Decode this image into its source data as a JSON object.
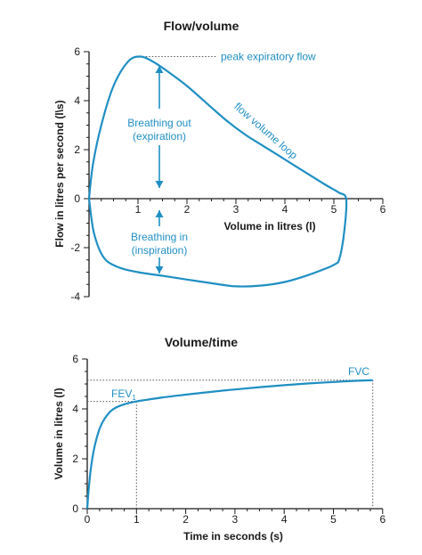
{
  "colors": {
    "accent": "#1f8fc3",
    "axis": "#1a1a1a",
    "dotted": "#555555"
  },
  "chart_data": [
    {
      "type": "line",
      "title": "Flow/volume",
      "xlabel": "Volume in litres (l)",
      "ylabel": "Flow in litres per second (l\\s)",
      "xlim": [
        0,
        6
      ],
      "ylim": [
        -4,
        6
      ],
      "xticks": [
        "1",
        "2",
        "3",
        "4",
        "5",
        "6"
      ],
      "yticks": [
        "-4",
        "-2",
        "0",
        "2",
        "4",
        "6"
      ],
      "series": [
        {
          "name": "flow volume loop",
          "x": [
            0.0,
            0.08,
            0.25,
            0.5,
            0.8,
            1.05,
            1.3,
            1.6,
            2.0,
            2.4,
            2.8,
            3.2,
            3.6,
            4.0,
            4.4,
            4.8,
            5.1,
            5.25,
            5.22,
            5.12,
            5.0,
            4.5,
            4.0,
            3.5,
            3.0,
            2.5,
            2.0,
            1.5,
            1.0,
            0.6,
            0.3,
            0.1,
            0.0
          ],
          "y": [
            0.0,
            1.4,
            3.0,
            4.6,
            5.6,
            5.8,
            5.6,
            5.2,
            4.6,
            3.9,
            3.2,
            2.6,
            2.1,
            1.6,
            1.1,
            0.6,
            0.25,
            0.0,
            -1.2,
            -2.4,
            -2.7,
            -3.1,
            -3.4,
            -3.55,
            -3.58,
            -3.45,
            -3.3,
            -3.15,
            -3.0,
            -2.8,
            -2.4,
            -1.4,
            0.0
          ]
        }
      ],
      "annotations": {
        "peak_label": "peak expiratory flow",
        "peak_value": [
          1.05,
          5.8
        ],
        "expiration_line1": "Breathing out",
        "expiration_line2": "(expiration)",
        "inspiration_line1": "Breathing in",
        "inspiration_line2": "(inspiration)",
        "loop_label": "flow volume loop"
      },
      "grid": false
    },
    {
      "type": "line",
      "title": "Volume/time",
      "xlabel": "Time in seconds (s)",
      "ylabel": "Volume in litres (l)",
      "xlim": [
        0,
        6
      ],
      "ylim": [
        0,
        6
      ],
      "xticks": [
        "0",
        "1",
        "2",
        "3",
        "4",
        "5",
        "6"
      ],
      "yticks": [
        "0",
        "2",
        "4",
        "6"
      ],
      "series": [
        {
          "name": "",
          "x": [
            0.0,
            0.03,
            0.08,
            0.15,
            0.25,
            0.35,
            0.5,
            0.7,
            1.0,
            1.5,
            2.0,
            2.5,
            3.0,
            3.5,
            4.0,
            4.5,
            5.0,
            5.5,
            5.8
          ],
          "y": [
            0.0,
            0.8,
            1.7,
            2.5,
            3.2,
            3.6,
            3.95,
            4.15,
            4.3,
            4.45,
            4.57,
            4.68,
            4.78,
            4.87,
            4.95,
            5.02,
            5.08,
            5.13,
            5.15
          ]
        }
      ],
      "annotations": {
        "fev1_label": "FEV",
        "fev1_sub": "1",
        "fev1_point": [
          1.0,
          4.3
        ],
        "fvc_label": "FVC",
        "fvc_point": [
          5.8,
          5.15
        ]
      },
      "grid": false
    }
  ]
}
